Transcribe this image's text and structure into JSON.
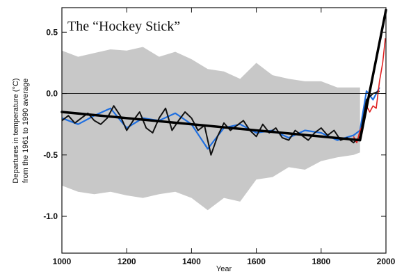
{
  "chart_data": {
    "type": "line",
    "title": "The “Hockey Stick”",
    "xlabel": "Year",
    "ylabel_line1": "Departures in temperature (°C)",
    "ylabel_line2": "from the 1961 to 1990 average",
    "xlim": [
      1000,
      2000
    ],
    "ylim": [
      -1.3,
      0.7
    ],
    "xticks": [
      1000,
      1200,
      1400,
      1600,
      1800,
      2000
    ],
    "yticks": [
      {
        "value": 0.5,
        "label": "0.5"
      },
      {
        "value": 0.0,
        "label": "0.0"
      },
      {
        "value": -0.5,
        "label": "-0.5"
      },
      {
        "value": -1.0,
        "label": "-1.0"
      }
    ],
    "zero_line": 0.0,
    "series": [
      {
        "role": "uncertainty_band",
        "color": "#c8c8c8",
        "x": [
          1000,
          1050,
          1100,
          1150,
          1200,
          1250,
          1300,
          1350,
          1400,
          1450,
          1500,
          1550,
          1600,
          1650,
          1700,
          1750,
          1800,
          1850,
          1900,
          1920
        ],
        "upper": [
          0.35,
          0.3,
          0.33,
          0.36,
          0.35,
          0.38,
          0.3,
          0.34,
          0.28,
          0.2,
          0.18,
          0.12,
          0.25,
          0.15,
          0.12,
          0.1,
          0.1,
          0.05,
          0.05,
          0.05
        ],
        "lower": [
          -0.75,
          -0.8,
          -0.82,
          -0.8,
          -0.83,
          -0.85,
          -0.82,
          -0.8,
          -0.85,
          -0.95,
          -0.85,
          -0.88,
          -0.7,
          -0.68,
          -0.6,
          -0.62,
          -0.55,
          -0.52,
          -0.5,
          -0.48
        ]
      },
      {
        "role": "annual_reconstruction",
        "color": "#1f6fe0",
        "x": [
          1000,
          1050,
          1100,
          1150,
          1200,
          1250,
          1300,
          1350,
          1400,
          1450,
          1500,
          1550,
          1600,
          1650,
          1700,
          1750,
          1800,
          1850,
          1900,
          1920,
          1940,
          1960,
          1980
        ],
        "values": [
          -0.2,
          -0.25,
          -0.18,
          -0.12,
          -0.28,
          -0.2,
          -0.22,
          -0.16,
          -0.25,
          -0.45,
          -0.28,
          -0.25,
          -0.32,
          -0.3,
          -0.36,
          -0.3,
          -0.32,
          -0.38,
          -0.34,
          -0.3,
          0.02,
          -0.05,
          0.05
        ]
      },
      {
        "role": "smoothed_reconstruction",
        "color": "#111111",
        "x": [
          1000,
          1020,
          1040,
          1060,
          1080,
          1100,
          1120,
          1140,
          1160,
          1180,
          1200,
          1220,
          1240,
          1260,
          1280,
          1300,
          1320,
          1340,
          1360,
          1380,
          1400,
          1420,
          1440,
          1460,
          1480,
          1500,
          1520,
          1540,
          1560,
          1580,
          1600,
          1620,
          1640,
          1660,
          1680,
          1700,
          1720,
          1740,
          1760,
          1780,
          1800,
          1820,
          1840,
          1860,
          1880,
          1900,
          1920,
          1940,
          1960,
          1980
        ],
        "values": [
          -0.22,
          -0.18,
          -0.24,
          -0.2,
          -0.16,
          -0.22,
          -0.25,
          -0.2,
          -0.1,
          -0.18,
          -0.3,
          -0.22,
          -0.15,
          -0.28,
          -0.32,
          -0.2,
          -0.12,
          -0.3,
          -0.22,
          -0.15,
          -0.2,
          -0.3,
          -0.26,
          -0.5,
          -0.35,
          -0.24,
          -0.3,
          -0.26,
          -0.22,
          -0.3,
          -0.35,
          -0.25,
          -0.32,
          -0.28,
          -0.36,
          -0.38,
          -0.3,
          -0.34,
          -0.38,
          -0.32,
          -0.28,
          -0.34,
          -0.3,
          -0.38,
          -0.36,
          -0.4,
          -0.35,
          -0.05,
          0.0,
          0.02
        ]
      },
      {
        "role": "instrumental_record",
        "color": "#e02020",
        "x": [
          1900,
          1910,
          1920,
          1930,
          1940,
          1950,
          1960,
          1970,
          1980,
          1990,
          1998
        ],
        "values": [
          -0.35,
          -0.4,
          -0.3,
          -0.25,
          -0.1,
          -0.15,
          -0.1,
          -0.12,
          0.1,
          0.25,
          0.45
        ]
      },
      {
        "role": "trend_line",
        "color": "#000000",
        "x": [
          1000,
          1920,
          2000
        ],
        "values": [
          -0.15,
          -0.38,
          0.68
        ]
      }
    ]
  }
}
